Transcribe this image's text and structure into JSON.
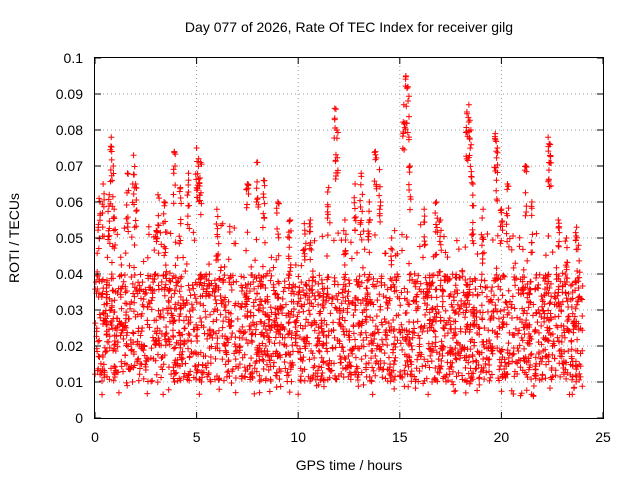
{
  "chart_data": {
    "type": "scatter",
    "title": "Day 077 of 2026, Rate Of TEC Index for receiver gilg",
    "xlabel": "GPS time / hours",
    "ylabel": "ROTI / TECUs",
    "xlim": [
      0,
      25
    ],
    "ylim": [
      0,
      0.1
    ],
    "xticks": [
      "0",
      "5",
      "10",
      "15",
      "20",
      "25"
    ],
    "yticks": [
      "0",
      "0.01",
      "0.02",
      "0.03",
      "0.04",
      "0.05",
      "0.06",
      "0.07",
      "0.08",
      "0.09",
      "0.1"
    ],
    "grid": true,
    "marker": "+",
    "series": [
      {
        "name": "ROTI",
        "color": "#ff0000",
        "x_range": [
          0,
          24
        ],
        "typical_band": [
          0.01,
          0.04
        ],
        "peaks": [
          [
            0.2,
            0.061
          ],
          [
            0.4,
            0.065
          ],
          [
            0.7,
            0.062
          ],
          [
            0.8,
            0.078
          ],
          [
            0.9,
            0.07
          ],
          [
            1.6,
            0.068
          ],
          [
            1.9,
            0.073
          ],
          [
            2.0,
            0.065
          ],
          [
            3.1,
            0.062
          ],
          [
            3.4,
            0.06
          ],
          [
            3.9,
            0.074
          ],
          [
            4.2,
            0.064
          ],
          [
            4.6,
            0.068
          ],
          [
            5.0,
            0.075
          ],
          [
            5.1,
            0.072
          ],
          [
            5.2,
            0.071
          ],
          [
            6.0,
            0.058
          ],
          [
            7.5,
            0.065
          ],
          [
            8.0,
            0.071
          ],
          [
            8.3,
            0.066
          ],
          [
            9.0,
            0.06
          ],
          [
            9.6,
            0.055
          ],
          [
            10.3,
            0.054
          ],
          [
            10.6,
            0.055
          ],
          [
            11.5,
            0.064
          ],
          [
            11.8,
            0.086
          ],
          [
            11.9,
            0.08
          ],
          [
            12.3,
            0.055
          ],
          [
            12.8,
            0.065
          ],
          [
            13.1,
            0.068
          ],
          [
            13.5,
            0.06
          ],
          [
            13.8,
            0.074
          ],
          [
            14.0,
            0.069
          ],
          [
            14.6,
            0.05
          ],
          [
            15.2,
            0.087
          ],
          [
            15.3,
            0.095
          ],
          [
            15.4,
            0.092
          ],
          [
            15.5,
            0.07
          ],
          [
            16.2,
            0.058
          ],
          [
            16.8,
            0.06
          ],
          [
            17.0,
            0.055
          ],
          [
            18.3,
            0.085
          ],
          [
            18.4,
            0.087
          ],
          [
            18.5,
            0.08
          ],
          [
            18.6,
            0.065
          ],
          [
            19.1,
            0.058
          ],
          [
            19.7,
            0.079
          ],
          [
            19.8,
            0.075
          ],
          [
            20.0,
            0.058
          ],
          [
            20.3,
            0.065
          ],
          [
            21.2,
            0.07
          ],
          [
            21.5,
            0.06
          ],
          [
            22.3,
            0.078
          ],
          [
            22.4,
            0.076
          ],
          [
            22.8,
            0.055
          ],
          [
            23.2,
            0.05
          ],
          [
            23.7,
            0.053
          ],
          [
            23.8,
            0.048
          ]
        ]
      }
    ]
  }
}
